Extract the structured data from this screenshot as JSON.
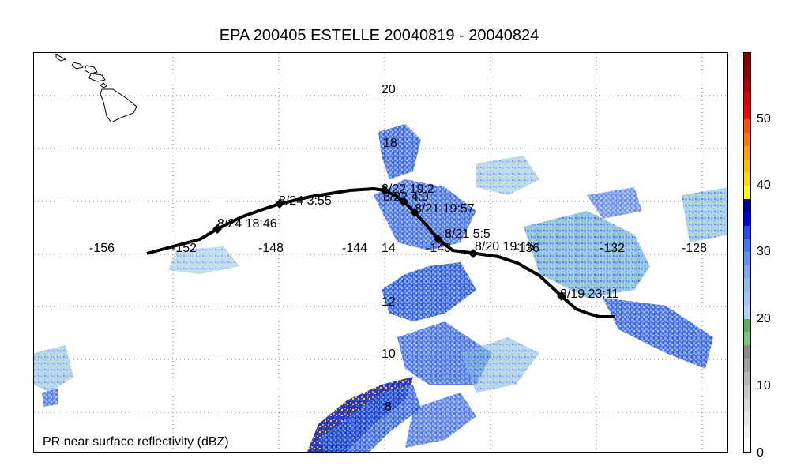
{
  "title": "EPA 200405 ESTELLE 20040819 - 20040824",
  "footer_label": "PR near surface reflectivity (dBZ)",
  "map": {
    "lon_labels": [
      "-156",
      "-152",
      "-148",
      "-144",
      "-140",
      "-136",
      "-132",
      "-128"
    ],
    "lat_labels": [
      "20",
      "18",
      "14",
      "12",
      "10",
      "8"
    ],
    "track_labels": [
      "8/24 18:46",
      "8/24 3:55",
      "8/22 19:2",
      "8/22 4:9",
      "8/21 19:57",
      "8/21 5:5",
      "8/20 19:15",
      "8/19 23:11"
    ],
    "track_color": "#000000",
    "coastline_color": "#000000",
    "grid": "dotted"
  },
  "colorbar": {
    "tick_labels": [
      "50",
      "40",
      "30",
      "20",
      "10",
      "0"
    ],
    "top_color": "#800000",
    "colors": [
      "#ffffff",
      "#f2f2f2",
      "#e6e6e6",
      "#d9d9d9",
      "#c8c8c8",
      "#b5b5b5",
      "#a0a0a0",
      "#8c8c8c",
      "#78c878",
      "#5ab45a",
      "#b4d2ff",
      "#a0c8ff",
      "#8cbef0",
      "#78aaf0",
      "#5a96f0",
      "#3c78f0",
      "#1e50f0",
      "#0000dc",
      "#0000a0",
      "#ffff00",
      "#ffdc00",
      "#ffbe00",
      "#ffa000",
      "#ff7800",
      "#ff5000",
      "#ff0000",
      "#dc0000",
      "#b40000",
      "#900000",
      "#800000"
    ]
  }
}
